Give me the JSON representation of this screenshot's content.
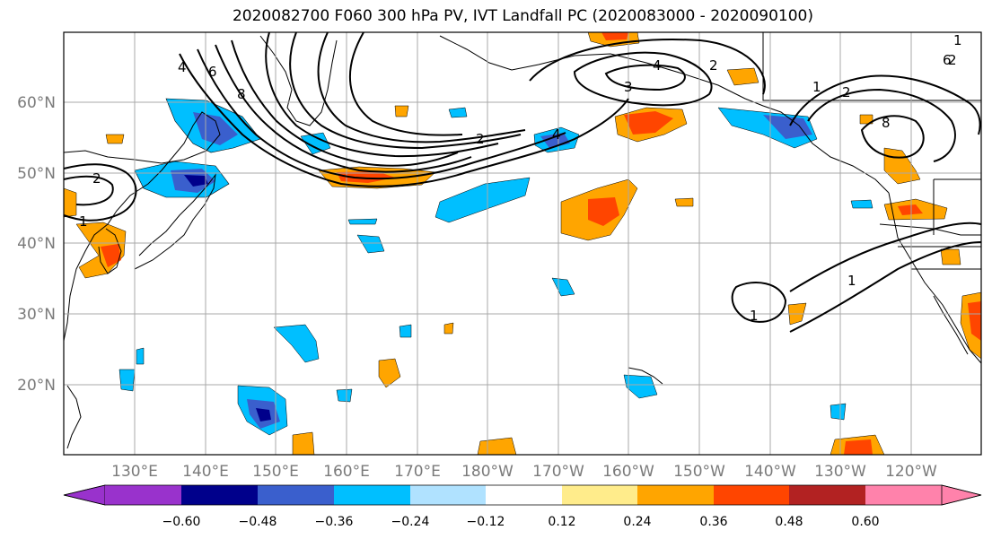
{
  "title": "2020082700 F060 300 hPa PV, IVT Landfall PC (2020083000 - 2020090100)",
  "latitudes": [
    "60°N",
    "50°N",
    "40°N",
    "30°N",
    "20°N"
  ],
  "longitudes": [
    "130°E",
    "140°E",
    "150°E",
    "160°E",
    "170°E",
    "180°W",
    "170°W",
    "160°W",
    "150°W",
    "140°W",
    "130°W",
    "120°W"
  ],
  "colorbar": {
    "labels": [
      "−0.60",
      "−0.48",
      "−0.36",
      "−0.24",
      "−0.12",
      "0.12",
      "0.24",
      "0.36",
      "0.48",
      "0.60"
    ],
    "colors": [
      "#9932cc",
      "#00008b",
      "#3a5fcd",
      "#00bfff",
      "#b0e2ff",
      "#ffffff",
      "#ffec8b",
      "#ffa500",
      "#ff4500",
      "#b22222",
      "#ff82ab"
    ]
  },
  "contour_labels": [
    "2",
    "4",
    "6",
    "8",
    "1",
    "2",
    "4",
    "4",
    "3",
    "2",
    "1",
    "2",
    "8",
    "6",
    "1",
    "1",
    "2",
    "1"
  ]
}
